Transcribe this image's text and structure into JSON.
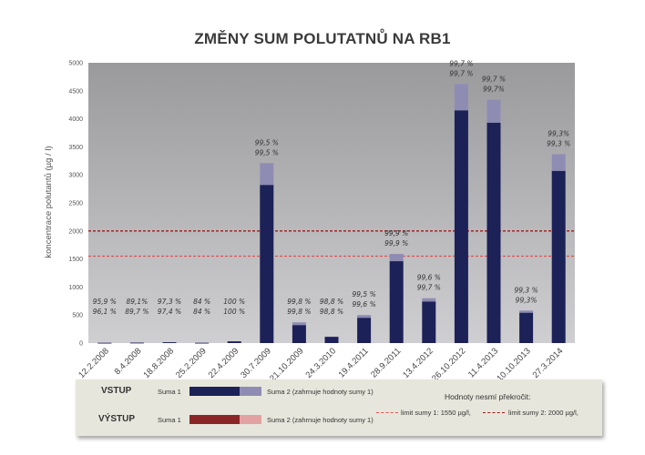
{
  "chart_data": {
    "type": "bar",
    "title": "ZMĚNY SUM POLUTATNŮ NA RB1",
    "ylabel": "koncentrace polutantů (µg / l)",
    "ylim": [
      0,
      5000
    ],
    "yticks": [
      0,
      500,
      1000,
      1500,
      2000,
      2500,
      3000,
      3500,
      4000,
      4500,
      5000
    ],
    "grid": false,
    "categories": [
      "12.2.2008",
      "8.4.2008",
      "18.8.2008",
      "25.2.2009",
      "22.4.2009",
      "30.7.2009",
      "21.10.2009",
      "24.3.2010",
      "19.4.2011",
      "28.9.2011",
      "13.4.2012",
      "26.10.2012",
      "11.4.2013",
      "10.10.2013",
      "27.3.2014"
    ],
    "series": [
      {
        "name": "Suma 1",
        "values": [
          5,
          8,
          15,
          5,
          30,
          2820,
          320,
          110,
          450,
          1460,
          740,
          4150,
          3930,
          540,
          3070
        ]
      },
      {
        "name": "Suma 2 (zahrnuje hodnoty sumy 1)",
        "values": [
          6,
          9,
          16,
          6,
          32,
          3210,
          370,
          115,
          500,
          1590,
          800,
          4620,
          4340,
          580,
          3370
        ]
      }
    ],
    "annotations": [
      [
        "95,9 %",
        "96,1 %"
      ],
      [
        "89,1%",
        "89,7 %"
      ],
      [
        "97,3 %",
        "97,4 %"
      ],
      [
        "84 %",
        "84 %"
      ],
      [
        "100 %",
        "100 %"
      ],
      [
        "99,5 %",
        "99,5 %"
      ],
      [
        "99,8 %",
        "99,8 %"
      ],
      [
        "98,8 %",
        "98,8 %"
      ],
      [
        "99,5 %",
        "99,6 %"
      ],
      [
        "99,9 %",
        "99,9 %"
      ],
      [
        "99,6 %",
        "99,7 %"
      ],
      [
        "99,7 %",
        "99,7 %"
      ],
      [
        "99,7 %",
        "99,7%"
      ],
      [
        "99,3 %",
        "99,3%"
      ],
      [
        "99,3%",
        "99,3 %"
      ]
    ],
    "limits": [
      {
        "label": "limit sumy 1: 1550 µg/l,",
        "value": 1550,
        "color": "#e05050"
      },
      {
        "label": "limit sumy 2: 2000 µg/l,",
        "value": 2000,
        "color": "#a01818"
      }
    ]
  },
  "legend": {
    "vstup_label": "VSTUP",
    "vystup_label": "VÝSTUP",
    "suma1_label": "Suma 1",
    "suma2_label": "Suma 2 (zahrnuje hodnoty sumy 1)",
    "note": "Hodnoty nesmí překročit:",
    "colors": {
      "vstup_suma1": "#1c2158",
      "vstup_suma2": "#8f8cb4",
      "vystup_suma1": "#8b2626",
      "vystup_suma2": "#e3a2a2"
    }
  }
}
